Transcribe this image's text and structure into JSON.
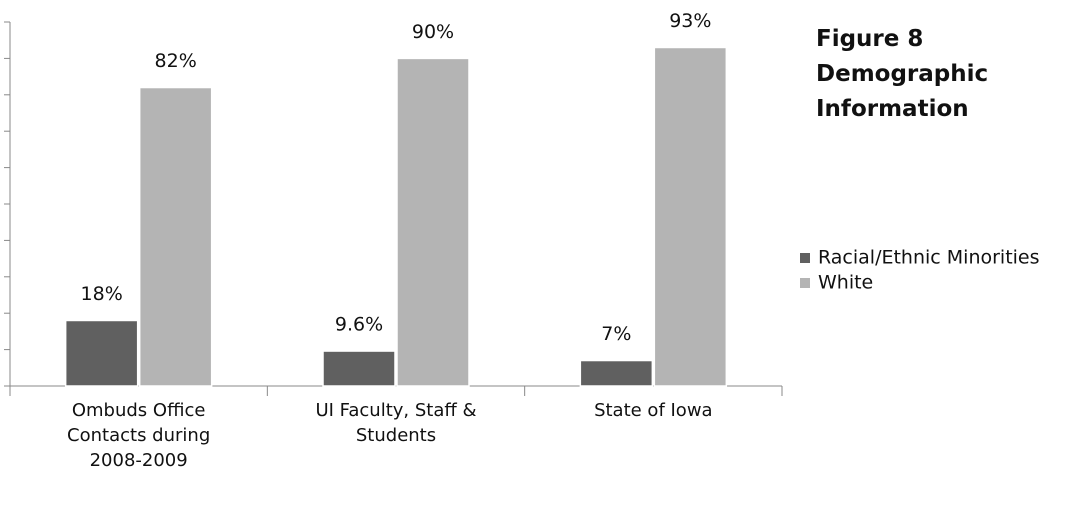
{
  "chart_data": {
    "type": "bar",
    "title": "Figure 8 Demographic Information",
    "categories": [
      "Ombuds Office Contacts during 2008-2009",
      "UI Faculty, Staff & Students",
      "State of Iowa"
    ],
    "series": [
      {
        "name": "Racial/Ethnic Minorities",
        "color": "#606060",
        "values": [
          18,
          9.6,
          7
        ],
        "value_labels": [
          "18%",
          "9.6%",
          "7%"
        ]
      },
      {
        "name": "White",
        "color": "#b4b4b4",
        "values": [
          82,
          90,
          93
        ],
        "value_labels": [
          "82%",
          "90%",
          "93%"
        ]
      }
    ],
    "ylim": [
      0,
      100
    ],
    "yticks": [
      0,
      10,
      20,
      30,
      40,
      50,
      60,
      70,
      80,
      90,
      100
    ],
    "grid": false,
    "legend": "right"
  }
}
